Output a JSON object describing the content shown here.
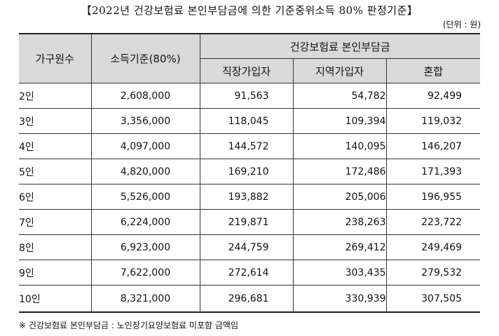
{
  "title": "【2022년 건강보험료 본인부담금에 의한 기준중위소득 80% 판정기준】",
  "unit": "(단위 : 원)",
  "headers": {
    "household": "가구원수",
    "income": "소득기준(80%)",
    "group": "건강보험료 본인부담금",
    "employee": "직장가입자",
    "regional": "지역가입자",
    "mixed": "혼합"
  },
  "rows": [
    {
      "count": "2인",
      "income": "2,608,000",
      "employee": "91,563",
      "regional": "54,782",
      "mixed": "92,499"
    },
    {
      "count": "3인",
      "income": "3,356,000",
      "employee": "118,045",
      "regional": "109,394",
      "mixed": "119,032"
    },
    {
      "count": "4인",
      "income": "4,097,000",
      "employee": "144,572",
      "regional": "140,095",
      "mixed": "146,207"
    },
    {
      "count": "5인",
      "income": "4,820,000",
      "employee": "169,210",
      "regional": "172,486",
      "mixed": "171,393"
    },
    {
      "count": "6인",
      "income": "5,526,000",
      "employee": "193,882",
      "regional": "205,006",
      "mixed": "196,955"
    },
    {
      "count": "7인",
      "income": "6,224,000",
      "employee": "219,871",
      "regional": "238,263",
      "mixed": "223,722"
    },
    {
      "count": "8인",
      "income": "6,923,000",
      "employee": "244,759",
      "regional": "269,412",
      "mixed": "249,469"
    },
    {
      "count": "9인",
      "income": "7,622,000",
      "employee": "272,614",
      "regional": "303,435",
      "mixed": "279,532"
    },
    {
      "count": "10인",
      "income": "8,321,000",
      "employee": "296,681",
      "regional": "330,939",
      "mixed": "307,505"
    }
  ],
  "note": "※ 건강보험료 본인부담금 : 노인장기요양보험료 미포함 금액임"
}
